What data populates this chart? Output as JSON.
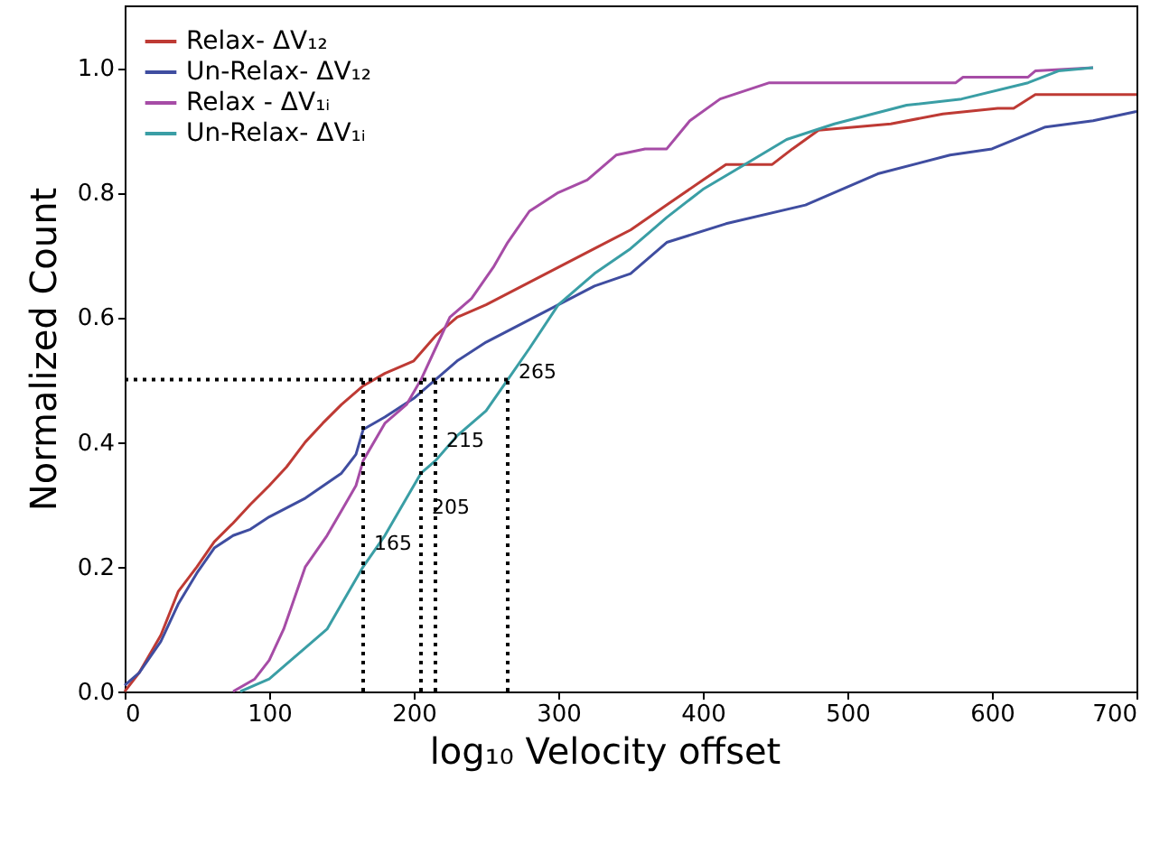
{
  "chart_data": {
    "type": "line",
    "xlabel": "log₁₀ Velocity offset",
    "ylabel": "Normalized Count",
    "xlim": [
      0,
      700
    ],
    "ylim": [
      0,
      1.1
    ],
    "xticks": [
      0,
      100,
      200,
      300,
      400,
      500,
      600,
      700
    ],
    "yticks": [
      {
        "value": 0,
        "label": "0.0"
      },
      {
        "value": 0.2,
        "label": "0.2"
      },
      {
        "value": 0.4,
        "label": "0.4"
      },
      {
        "value": 0.6,
        "label": "0.6"
      },
      {
        "value": 0.8,
        "label": "0.8"
      },
      {
        "value": 1,
        "label": "1.0"
      }
    ],
    "grid": false,
    "legend": "top left",
    "series": [
      {
        "name": "Relax- ΔV₁₂",
        "color": "#be3a34",
        "x": [
          0,
          10,
          25,
          37,
          50,
          62,
          75,
          87,
          100,
          112,
          125,
          137,
          150,
          165,
          180,
          200,
          215,
          230,
          250,
          275,
          300,
          325,
          350,
          375,
          400,
          416,
          448,
          462,
          480,
          530,
          566,
          604,
          615,
          630,
          700
        ],
        "values": [
          0,
          0.03,
          0.09,
          0.16,
          0.2,
          0.24,
          0.27,
          0.3,
          0.33,
          0.36,
          0.4,
          0.43,
          0.46,
          0.49,
          0.51,
          0.53,
          0.57,
          0.6,
          0.62,
          0.65,
          0.68,
          0.71,
          0.74,
          0.78,
          0.82,
          0.845,
          0.845,
          0.87,
          0.9,
          0.91,
          0.926,
          0.935,
          0.935,
          0.957,
          0.957
        ]
      },
      {
        "name": "Un-Relax- ΔV₁₂",
        "color": "#3f4da0",
        "x": [
          0,
          10,
          25,
          37,
          50,
          62,
          75,
          87,
          100,
          125,
          150,
          160,
          165,
          180,
          200,
          215,
          230,
          250,
          275,
          300,
          325,
          350,
          375,
          416,
          471,
          521,
          571,
          600,
          637,
          670,
          700
        ],
        "values": [
          0.01,
          0.03,
          0.08,
          0.14,
          0.19,
          0.23,
          0.25,
          0.26,
          0.28,
          0.31,
          0.35,
          0.38,
          0.42,
          0.44,
          0.47,
          0.5,
          0.53,
          0.56,
          0.59,
          0.62,
          0.65,
          0.67,
          0.72,
          0.75,
          0.78,
          0.83,
          0.86,
          0.87,
          0.905,
          0.915,
          0.93
        ]
      },
      {
        "name": "Relax - ΔV₁ᵢ",
        "color": "#a64ca6",
        "x": [
          75,
          90,
          100,
          110,
          125,
          140,
          150,
          160,
          165,
          180,
          195,
          205,
          215,
          225,
          240,
          255,
          265,
          280,
          300,
          320,
          340,
          360,
          375,
          391,
          412,
          446,
          575,
          580,
          625,
          630,
          670
        ],
        "values": [
          0,
          0.02,
          0.05,
          0.1,
          0.2,
          0.25,
          0.29,
          0.33,
          0.37,
          0.43,
          0.46,
          0.5,
          0.55,
          0.6,
          0.63,
          0.68,
          0.72,
          0.77,
          0.8,
          0.82,
          0.86,
          0.87,
          0.87,
          0.915,
          0.95,
          0.976,
          0.976,
          0.985,
          0.985,
          0.995,
          1.0
        ]
      },
      {
        "name": "Un-Relax- ΔV₁ᵢ",
        "color": "#3a9ea5",
        "x": [
          80,
          100,
          115,
          125,
          140,
          150,
          165,
          180,
          195,
          205,
          215,
          230,
          250,
          265,
          280,
          300,
          325,
          350,
          375,
          400,
          429,
          458,
          491,
          541,
          579,
          625,
          646,
          670
        ],
        "values": [
          0,
          0.02,
          0.05,
          0.07,
          0.1,
          0.14,
          0.2,
          0.25,
          0.31,
          0.35,
          0.37,
          0.41,
          0.45,
          0.5,
          0.55,
          0.62,
          0.67,
          0.71,
          0.76,
          0.805,
          0.845,
          0.885,
          0.91,
          0.94,
          0.95,
          0.976,
          0.995,
          1.0
        ]
      }
    ],
    "ref_lines": [
      {
        "axis": "y",
        "value": 0.5,
        "line_style": "dotted",
        "color": "#000000"
      },
      {
        "axis": "x",
        "value": 165,
        "label": "165",
        "line_style": "dotted",
        "color": "#000000"
      },
      {
        "axis": "x",
        "value": 205,
        "label": "205",
        "line_style": "dotted",
        "color": "#000000"
      },
      {
        "axis": "x",
        "value": 215,
        "label": "215",
        "line_style": "dotted",
        "color": "#000000"
      },
      {
        "axis": "x",
        "value": 265,
        "label": "265",
        "line_style": "dotted",
        "color": "#000000"
      }
    ]
  }
}
